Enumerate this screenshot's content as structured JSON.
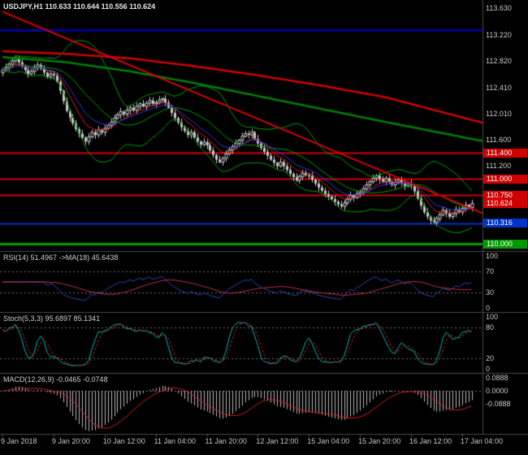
{
  "chart": {
    "colors": {
      "background": "#000000",
      "candle": "#C8C8C8",
      "separator": "#4A4A4A",
      "axis_text": "#C8C8C8",
      "dashed_level": "#6E6E6E"
    }
  },
  "chart_data": {
    "type": "candlestick",
    "symbol": "USDJPY",
    "timeframe": "H1",
    "title": "USDJPY,H1 110.633 110.644 110.556 110.624",
    "quote": {
      "open": "110.633",
      "high": "110.644",
      "low": "110.556",
      "close": "110.624"
    },
    "x_ticks": [
      "9 Jan 2018",
      "9 Jan 20:00",
      "10 Jan 12:00",
      "11 Jan 04:00",
      "11 Jan 20:00",
      "12 Jan 12:00",
      "15 Jan 04:00",
      "15 Jan 20:00",
      "16 Jan 12:00",
      "17 Jan 04:00"
    ],
    "bars_per_tick": 16,
    "price_axis": {
      "max": 113.76,
      "min": 109.89,
      "plain_ticks": [
        "113.630",
        "113.220",
        "112.820",
        "112.410",
        "112.010",
        "111.600",
        "111.200"
      ]
    },
    "closes": [
      112.68,
      112.72,
      112.77,
      112.82,
      112.86,
      112.8,
      112.74,
      112.68,
      112.62,
      112.66,
      112.72,
      112.76,
      112.7,
      112.64,
      112.58,
      112.62,
      112.6,
      112.5,
      112.36,
      112.2,
      112.05,
      111.95,
      111.86,
      111.77,
      111.7,
      111.64,
      111.58,
      111.65,
      111.72,
      111.68,
      111.76,
      111.72,
      111.78,
      111.83,
      111.88,
      111.94,
      111.99,
      112.04,
      112.0,
      112.06,
      112.1,
      112.06,
      112.12,
      112.16,
      112.12,
      112.17,
      112.21,
      112.16,
      112.18,
      112.22,
      112.24,
      112.18,
      112.1,
      112.02,
      111.94,
      111.87,
      111.8,
      111.74,
      111.68,
      111.72,
      111.64,
      111.58,
      111.53,
      111.57,
      111.52,
      111.44,
      111.37,
      111.3,
      111.26,
      111.32,
      111.39,
      111.45,
      111.5,
      111.55,
      111.6,
      111.66,
      111.7,
      111.68,
      111.72,
      111.62,
      111.55,
      111.48,
      111.42,
      111.36,
      111.3,
      111.25,
      111.2,
      111.26,
      111.2,
      111.14,
      111.08,
      111.03,
      110.98,
      111.04,
      111.09,
      111.06,
      111.05,
      110.99,
      110.93,
      110.87,
      110.82,
      110.77,
      110.73,
      110.69,
      110.65,
      110.61,
      110.58,
      110.63,
      110.69,
      110.75,
      110.71,
      110.77,
      110.8,
      110.85,
      110.91,
      110.96,
      111.01,
      111.05,
      111.0,
      110.96,
      111.01,
      110.96,
      110.91,
      110.95,
      110.99,
      110.94,
      110.89,
      110.93,
      110.9,
      110.81,
      110.7,
      110.59,
      110.49,
      110.42,
      110.36,
      110.33,
      110.39,
      110.45,
      110.52,
      110.47,
      110.42,
      110.47,
      110.53,
      110.49,
      110.55,
      110.6,
      110.56,
      110.624
    ],
    "levels": [
      {
        "price": 113.3,
        "color": "#000099",
        "width": 3,
        "boxed": false,
        "label": ""
      },
      {
        "price": 111.4,
        "color": "#D10000",
        "width": 2,
        "boxed": true,
        "label": "111.400"
      },
      {
        "price": 111.0,
        "color": "#D10000",
        "width": 2,
        "boxed": true,
        "label": "111.000"
      },
      {
        "price": 110.75,
        "color": "#D10000",
        "width": 2,
        "boxed": true,
        "label": "110.750"
      },
      {
        "price": 110.316,
        "color": "#0033CC",
        "width": 2,
        "boxed": true,
        "label": "110.316"
      },
      {
        "price": 110.0,
        "color": "#009900",
        "width": 3,
        "boxed": true,
        "label": "110.000"
      }
    ],
    "current_price": {
      "value": 110.624,
      "label": "110.624",
      "color": "#D10000"
    },
    "trendline": {
      "anchors": [
        [
          0,
          113.58
        ],
        [
          151,
          110.46
        ]
      ],
      "color": "#E00000",
      "width": 2
    },
    "ma_overlays": [
      {
        "name": "ma-slow-red",
        "color": "#D10000",
        "width": 2.5,
        "anchors": [
          [
            0,
            112.97
          ],
          [
            20,
            112.93
          ],
          [
            40,
            112.86
          ],
          [
            60,
            112.74
          ],
          [
            80,
            112.6
          ],
          [
            100,
            112.44
          ],
          [
            120,
            112.26
          ],
          [
            151,
            111.86
          ]
        ]
      },
      {
        "name": "ma-slow-green",
        "color": "#008000",
        "width": 2.5,
        "anchors": [
          [
            0,
            112.88
          ],
          [
            20,
            112.8
          ],
          [
            40,
            112.66
          ],
          [
            60,
            112.48
          ],
          [
            80,
            112.28
          ],
          [
            100,
            112.08
          ],
          [
            120,
            111.88
          ],
          [
            151,
            111.58
          ]
        ]
      }
    ],
    "bollinger": {
      "period": 20,
      "deviation": 2,
      "color": "#00A000"
    },
    "fast_mas": [
      {
        "period": 8,
        "color": "#E02020"
      },
      {
        "period": 13,
        "color": "#2840E8"
      }
    ],
    "indicators": {
      "rsi": {
        "label": "RSI(14) 51.4967 ->MA(18) 45.6438",
        "period": 14,
        "ma_period": 18,
        "ticks": [
          "100",
          "70",
          "30",
          "0"
        ],
        "tick_values": [
          100,
          70,
          30,
          0
        ],
        "levels": [
          70,
          30
        ],
        "range": [
          -8,
          108
        ],
        "line_color": "#3048B4",
        "ma_color": "#C03050"
      },
      "stoch": {
        "label": "Stoch(5,3,3) 95.6897 85.1341",
        "k": 5,
        "slowing": 3,
        "d": 3,
        "ticks": [
          "100",
          "80",
          "20",
          "0"
        ],
        "tick_values": [
          100,
          80,
          20,
          0
        ],
        "levels": [
          80,
          20
        ],
        "range": [
          -8,
          108
        ],
        "k_color": "#00B8B8",
        "d_color": "#D02020"
      },
      "macd": {
        "label": "MACD(12,26,9) -0.0465 -0.0748",
        "fast": 12,
        "slow": 26,
        "signal": 9,
        "ticks": [
          "0.0888",
          "0.0000",
          "-0.0888"
        ],
        "tick_values": [
          0.0888,
          0,
          -0.0888
        ],
        "range": [
          -0.3,
          0.12
        ],
        "hist_color": "#B8B8B8",
        "signal_color": "#D02020"
      }
    }
  }
}
